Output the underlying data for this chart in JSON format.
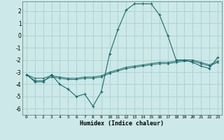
{
  "xlabel": "Humidex (Indice chaleur)",
  "ylabel": "",
  "bg_color": "#cce8e8",
  "grid_color": "#aacfcf",
  "line_color": "#1a6b6b",
  "xlim": [
    -0.5,
    23.5
  ],
  "ylim": [
    -6.5,
    2.8
  ],
  "yticks": [
    -6,
    -5,
    -4,
    -3,
    -2,
    -1,
    0,
    1,
    2
  ],
  "xticks": [
    0,
    1,
    2,
    3,
    4,
    5,
    6,
    7,
    8,
    9,
    10,
    11,
    12,
    13,
    14,
    15,
    16,
    17,
    18,
    19,
    20,
    21,
    22,
    23
  ],
  "line1_x": [
    0,
    1,
    2,
    3,
    4,
    5,
    6,
    7,
    8,
    9,
    10,
    11,
    12,
    13,
    14,
    15,
    16,
    17,
    18,
    19,
    20,
    21,
    22,
    23
  ],
  "line1_y": [
    -3.2,
    -3.8,
    -3.8,
    -3.2,
    -4.0,
    -4.4,
    -5.0,
    -4.8,
    -5.8,
    -4.6,
    -1.5,
    0.5,
    2.1,
    2.6,
    2.6,
    2.6,
    1.7,
    0.0,
    -2.0,
    -2.0,
    -2.2,
    -2.5,
    -2.7,
    -1.8
  ],
  "line2_x": [
    0,
    1,
    2,
    3,
    4,
    5,
    6,
    7,
    8,
    9,
    10,
    11,
    12,
    13,
    14,
    15,
    16,
    17,
    18,
    19,
    20,
    21,
    22,
    23
  ],
  "line2_y": [
    -3.2,
    -3.7,
    -3.7,
    -3.4,
    -3.5,
    -3.6,
    -3.6,
    -3.5,
    -3.5,
    -3.4,
    -3.1,
    -2.9,
    -2.7,
    -2.6,
    -2.5,
    -2.4,
    -2.3,
    -2.3,
    -2.2,
    -2.1,
    -2.1,
    -2.3,
    -2.5,
    -2.2
  ],
  "line3_x": [
    0,
    1,
    2,
    3,
    4,
    5,
    6,
    7,
    8,
    9,
    10,
    11,
    12,
    13,
    14,
    15,
    16,
    17,
    18,
    19,
    20,
    21,
    22,
    23
  ],
  "line3_y": [
    -3.2,
    -3.5,
    -3.5,
    -3.3,
    -3.4,
    -3.5,
    -3.5,
    -3.4,
    -3.4,
    -3.3,
    -3.0,
    -2.8,
    -2.6,
    -2.5,
    -2.4,
    -2.3,
    -2.2,
    -2.2,
    -2.1,
    -2.0,
    -2.0,
    -2.2,
    -2.4,
    -2.1
  ]
}
